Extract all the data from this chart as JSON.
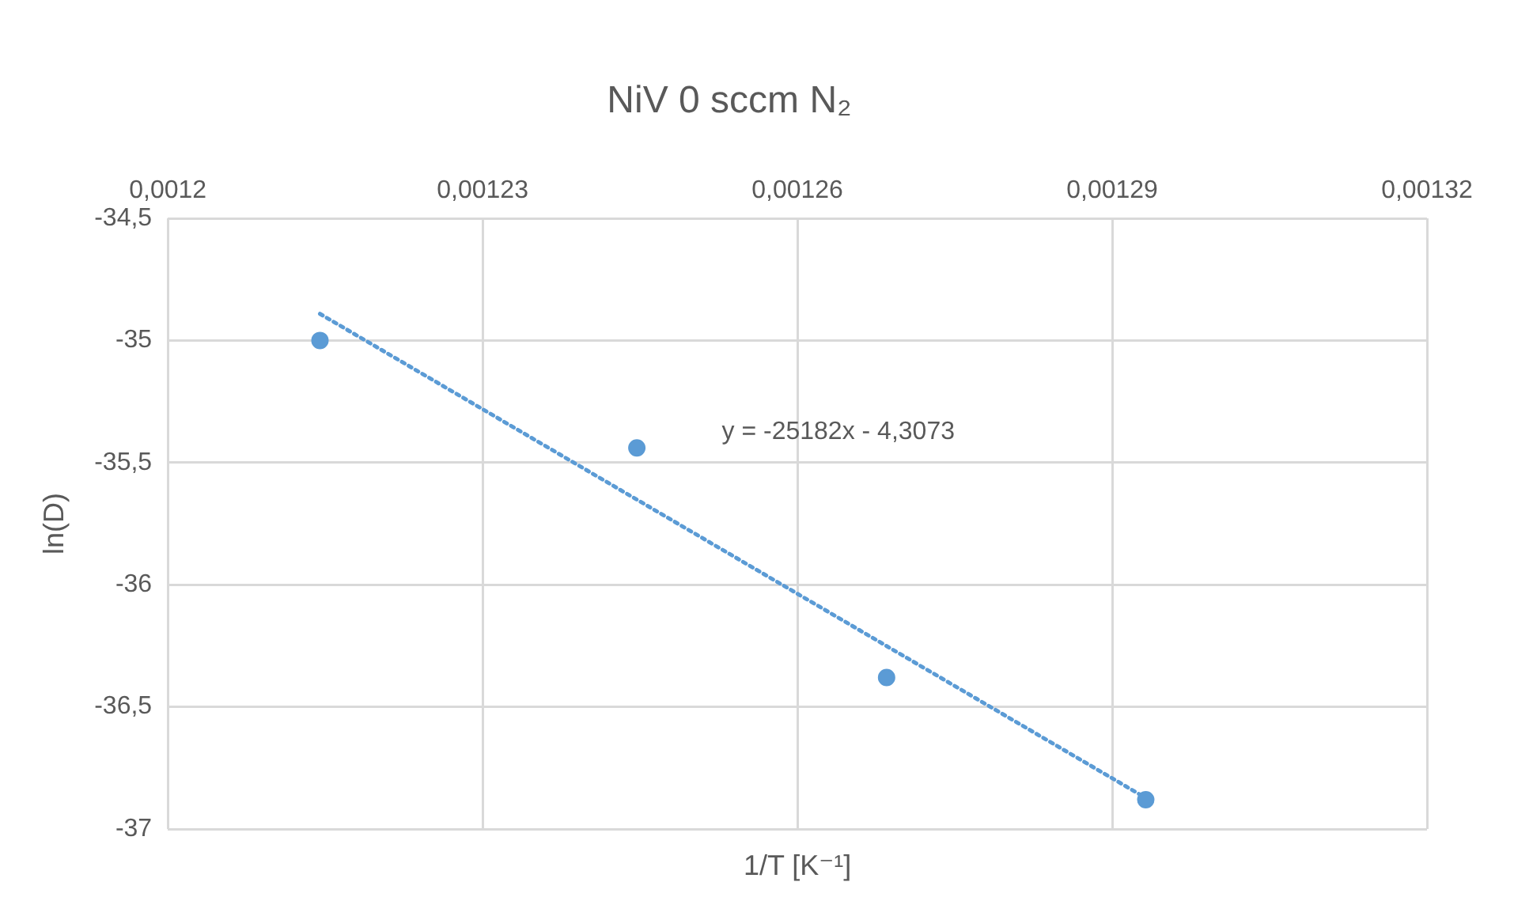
{
  "chart_data": {
    "type": "scatter",
    "title": "NiV 0 sccm N₂",
    "xlabel": "1/T [K⁻¹]",
    "ylabel": "ln(D)",
    "series": [
      {
        "color": "#5b9bd5",
        "x": [
          0.0012145,
          0.0012447,
          0.0012685,
          0.0012932
        ],
        "values": [
          -35.0,
          -35.44,
          -36.38,
          -36.88
        ],
        "marker": "circle"
      },
      {
        "type": "line",
        "color": "#5b9bd5",
        "x": [
          0.0012145,
          0.0012932
        ],
        "values": [
          -34.891,
          -36.873
        ],
        "marker": "none",
        "line_style": "dotted"
      }
    ],
    "xlim": [
      0.0012,
      0.00132
    ],
    "xticks": [
      {
        "value": 0.0012,
        "label": "0,0012"
      },
      {
        "value": 0.00123,
        "label": "0,00123"
      },
      {
        "value": 0.00126,
        "label": "0,00126"
      },
      {
        "value": 0.00129,
        "label": "0,00129"
      },
      {
        "value": 0.00132,
        "label": "0,00132"
      }
    ],
    "ylim": [
      -37,
      -34.5
    ],
    "yticks": [
      {
        "value": -34.5,
        "label": "-34,5"
      },
      {
        "value": -35,
        "label": "-35"
      },
      {
        "value": -35.5,
        "label": "-35,5"
      },
      {
        "value": -36,
        "label": "-36"
      },
      {
        "value": -36.5,
        "label": "-36,5"
      },
      {
        "value": -37,
        "label": "-37"
      }
    ],
    "annotations": [
      "y = -25182x - 4,3073"
    ],
    "grid": true,
    "legend": false
  }
}
